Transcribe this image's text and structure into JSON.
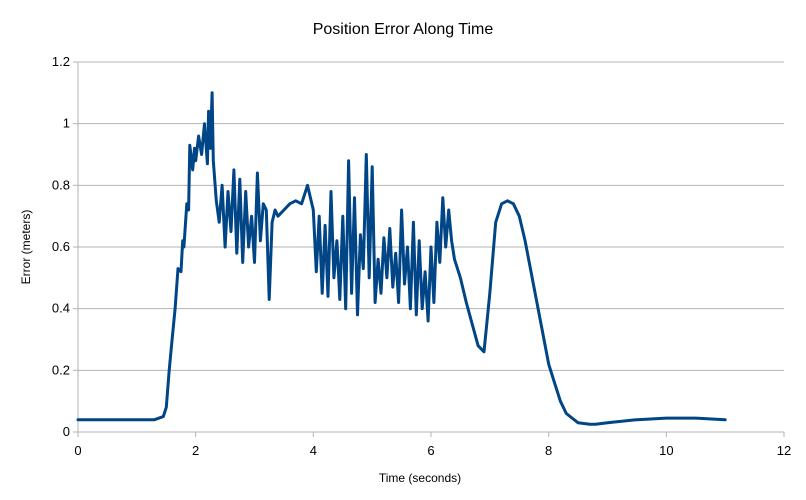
{
  "chart_data": {
    "type": "line",
    "title": "Position Error Along Time",
    "xlabel": "Time (seconds)",
    "ylabel": "Error (meters)",
    "xlim": [
      0,
      12
    ],
    "ylim": [
      0,
      1.2
    ],
    "x_ticks": [
      0,
      2,
      4,
      6,
      8,
      10,
      12
    ],
    "y_ticks": [
      0,
      0.2,
      0.4,
      0.6,
      0.8,
      1,
      1.2
    ],
    "grid": true,
    "legend": "none",
    "colors": {
      "series": "#004586",
      "grid": "#b3b3b3"
    },
    "series": [
      {
        "x": [
          0,
          0.5,
          1.0,
          1.3,
          1.45,
          1.5,
          1.55,
          1.6,
          1.65,
          1.7,
          1.75,
          1.78,
          1.8,
          1.85,
          1.88,
          1.9,
          1.95,
          1.98,
          2.0,
          2.05,
          2.1,
          2.15,
          2.2,
          2.22,
          2.25,
          2.28,
          2.3,
          2.35,
          2.4,
          2.45,
          2.5,
          2.55,
          2.6,
          2.65,
          2.7,
          2.75,
          2.8,
          2.85,
          2.9,
          2.95,
          3.0,
          3.05,
          3.1,
          3.15,
          3.2,
          3.25,
          3.3,
          3.35,
          3.4,
          3.5,
          3.6,
          3.7,
          3.8,
          3.9,
          4.0,
          4.05,
          4.1,
          4.15,
          4.2,
          4.25,
          4.3,
          4.35,
          4.4,
          4.45,
          4.5,
          4.55,
          4.6,
          4.65,
          4.7,
          4.75,
          4.8,
          4.85,
          4.9,
          4.95,
          5.0,
          5.05,
          5.1,
          5.15,
          5.2,
          5.25,
          5.3,
          5.35,
          5.4,
          5.45,
          5.5,
          5.55,
          5.6,
          5.65,
          5.7,
          5.75,
          5.8,
          5.85,
          5.9,
          5.95,
          6.0,
          6.05,
          6.1,
          6.15,
          6.2,
          6.25,
          6.3,
          6.35,
          6.4,
          6.5,
          6.6,
          6.7,
          6.8,
          6.9,
          7.0,
          7.1,
          7.2,
          7.3,
          7.4,
          7.5,
          7.6,
          7.7,
          7.8,
          7.9,
          8.0,
          8.1,
          8.2,
          8.3,
          8.5,
          8.7,
          8.8,
          9.0,
          9.5,
          10.0,
          10.5,
          11.0
        ],
        "values": [
          0.04,
          0.04,
          0.04,
          0.04,
          0.05,
          0.08,
          0.2,
          0.3,
          0.4,
          0.53,
          0.52,
          0.62,
          0.6,
          0.74,
          0.72,
          0.93,
          0.85,
          0.92,
          0.88,
          0.96,
          0.9,
          1.0,
          0.87,
          1.04,
          0.92,
          1.1,
          0.88,
          0.75,
          0.68,
          0.8,
          0.6,
          0.78,
          0.65,
          0.85,
          0.58,
          0.82,
          0.55,
          0.78,
          0.6,
          0.7,
          0.55,
          0.84,
          0.62,
          0.74,
          0.72,
          0.43,
          0.68,
          0.72,
          0.7,
          0.72,
          0.74,
          0.75,
          0.74,
          0.8,
          0.72,
          0.52,
          0.7,
          0.45,
          0.67,
          0.44,
          0.78,
          0.5,
          0.62,
          0.43,
          0.7,
          0.4,
          0.88,
          0.45,
          0.76,
          0.38,
          0.64,
          0.53,
          0.9,
          0.5,
          0.86,
          0.42,
          0.56,
          0.45,
          0.63,
          0.5,
          0.66,
          0.47,
          0.58,
          0.42,
          0.72,
          0.48,
          0.6,
          0.4,
          0.68,
          0.38,
          0.62,
          0.4,
          0.52,
          0.36,
          0.6,
          0.42,
          0.68,
          0.55,
          0.76,
          0.6,
          0.72,
          0.62,
          0.56,
          0.5,
          0.42,
          0.35,
          0.28,
          0.26,
          0.45,
          0.68,
          0.74,
          0.75,
          0.74,
          0.7,
          0.62,
          0.52,
          0.42,
          0.32,
          0.22,
          0.16,
          0.1,
          0.06,
          0.03,
          0.025,
          0.025,
          0.03,
          0.04,
          0.045,
          0.045,
          0.04
        ]
      }
    ]
  }
}
